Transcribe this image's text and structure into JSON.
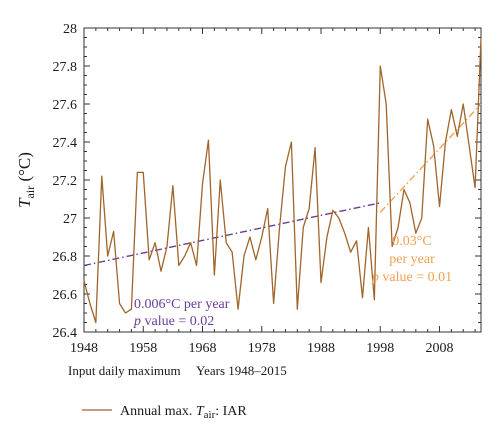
{
  "chart_data": {
    "type": "line",
    "ylabel_main": "T",
    "ylabel_sub": "air",
    "ylabel_unit": " (°C)",
    "xlabel_left": "Input daily maximum",
    "xlabel_right": "Years 1948–2015",
    "xlim": [
      1948,
      2015
    ],
    "ylim": [
      26.4,
      28.0
    ],
    "x_ticks": [
      1948,
      1958,
      1968,
      1978,
      1988,
      1998,
      2008
    ],
    "y_ticks": [
      26.4,
      26.6,
      26.8,
      27.0,
      27.2,
      27.4,
      27.6,
      27.8,
      28.0
    ],
    "y_tick_labels": [
      "26.4",
      "26.6",
      "26.8",
      "27",
      "27.2",
      "27.4",
      "27.6",
      "27.8",
      "28"
    ],
    "grid": false,
    "legend_position": "bottom-left",
    "series": [
      {
        "name": "Annual max. T_air: IAR",
        "legend_main": "Annual max. ",
        "legend_t": "T",
        "legend_sub": "air",
        "legend_suffix": ": IAR",
        "color": "#a0652a",
        "x": [
          1948,
          1949,
          1950,
          1951,
          1952,
          1953,
          1954,
          1955,
          1956,
          1957,
          1958,
          1959,
          1960,
          1961,
          1962,
          1963,
          1964,
          1965,
          1966,
          1967,
          1968,
          1969,
          1970,
          1971,
          1972,
          1973,
          1974,
          1975,
          1976,
          1977,
          1978,
          1979,
          1980,
          1981,
          1982,
          1983,
          1984,
          1985,
          1986,
          1987,
          1988,
          1989,
          1990,
          1991,
          1992,
          1993,
          1994,
          1995,
          1996,
          1997,
          1998,
          1999,
          2000,
          2001,
          2002,
          2003,
          2004,
          2005,
          2006,
          2007,
          2008,
          2009,
          2010,
          2011,
          2012,
          2013,
          2014,
          2015
        ],
        "values": [
          26.67,
          26.55,
          26.45,
          27.22,
          26.8,
          26.93,
          26.55,
          26.5,
          26.52,
          27.24,
          27.24,
          26.78,
          26.87,
          26.72,
          26.85,
          27.17,
          26.75,
          26.8,
          26.87,
          26.75,
          27.18,
          27.41,
          26.7,
          27.2,
          26.87,
          26.82,
          26.52,
          26.8,
          26.9,
          26.78,
          26.9,
          27.05,
          26.55,
          26.95,
          27.27,
          27.4,
          26.52,
          26.95,
          27.05,
          27.37,
          26.66,
          26.9,
          27.04,
          27.0,
          26.92,
          26.82,
          26.88,
          26.58,
          26.95,
          26.57,
          27.8,
          27.6,
          26.85,
          26.95,
          27.15,
          27.08,
          26.92,
          27.0,
          27.52,
          27.38,
          27.06,
          27.4,
          27.57,
          27.43,
          27.6,
          27.38,
          27.16,
          27.95
        ]
      }
    ],
    "trends": [
      {
        "color": "#6a3d9a",
        "x": [
          1948,
          1998
        ],
        "y": [
          26.75,
          27.08
        ],
        "label_line1": "0.006°C per year",
        "label_p": "p",
        "label_line2": " value = 0.02"
      },
      {
        "color": "#f0a050",
        "x": [
          1998,
          2015
        ],
        "y": [
          27.03,
          27.6
        ],
        "label_line1": "0.03°C",
        "label_line1b": "per year",
        "label_p": "p",
        "label_line2": " value = 0.01"
      }
    ]
  }
}
